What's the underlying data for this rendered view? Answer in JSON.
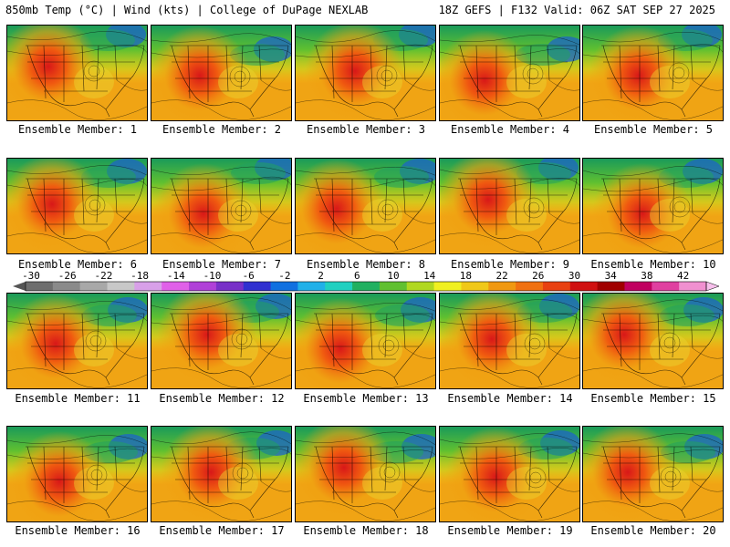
{
  "header": {
    "title_left": "850mb Temp (°C) | Wind (kts) | College of DuPage NEXLAB",
    "title_right": "18Z GEFS | F132 Valid: 06Z SAT SEP 27 2025"
  },
  "members": [
    {
      "label": "Ensemble Member: 1"
    },
    {
      "label": "Ensemble Member: 2"
    },
    {
      "label": "Ensemble Member: 3"
    },
    {
      "label": "Ensemble Member: 4"
    },
    {
      "label": "Ensemble Member: 5"
    },
    {
      "label": "Ensemble Member: 6"
    },
    {
      "label": "Ensemble Member: 7"
    },
    {
      "label": "Ensemble Member: 8"
    },
    {
      "label": "Ensemble Member: 9"
    },
    {
      "label": "Ensemble Member: 10"
    },
    {
      "label": "Ensemble Member: 11"
    },
    {
      "label": "Ensemble Member: 12"
    },
    {
      "label": "Ensemble Member: 13"
    },
    {
      "label": "Ensemble Member: 14"
    },
    {
      "label": "Ensemble Member: 15"
    },
    {
      "label": "Ensemble Member: 16"
    },
    {
      "label": "Ensemble Member: 17"
    },
    {
      "label": "Ensemble Member: 18"
    },
    {
      "label": "Ensemble Member: 19"
    },
    {
      "label": "Ensemble Member: 20"
    }
  ],
  "colorbar": {
    "ticks": [
      "-30",
      "-26",
      "-22",
      "-18",
      "-14",
      "-10",
      "-6",
      "-2",
      "2",
      "6",
      "10",
      "14",
      "18",
      "22",
      "26",
      "30",
      "34",
      "38",
      "42"
    ],
    "colors": [
      "#6e6e6e",
      "#8a8a8a",
      "#a8a8a8",
      "#c8c8c8",
      "#d8a0e8",
      "#e060e8",
      "#b040d8",
      "#7830c8",
      "#3030d0",
      "#1070e0",
      "#20b0e8",
      "#20d0c0",
      "#20b060",
      "#60c030",
      "#b0d820",
      "#f0f020",
      "#f0c818",
      "#f09810",
      "#f07010",
      "#e84010",
      "#d01010",
      "#a00000",
      "#c00060",
      "#e040a0",
      "#f090d0"
    ]
  }
}
